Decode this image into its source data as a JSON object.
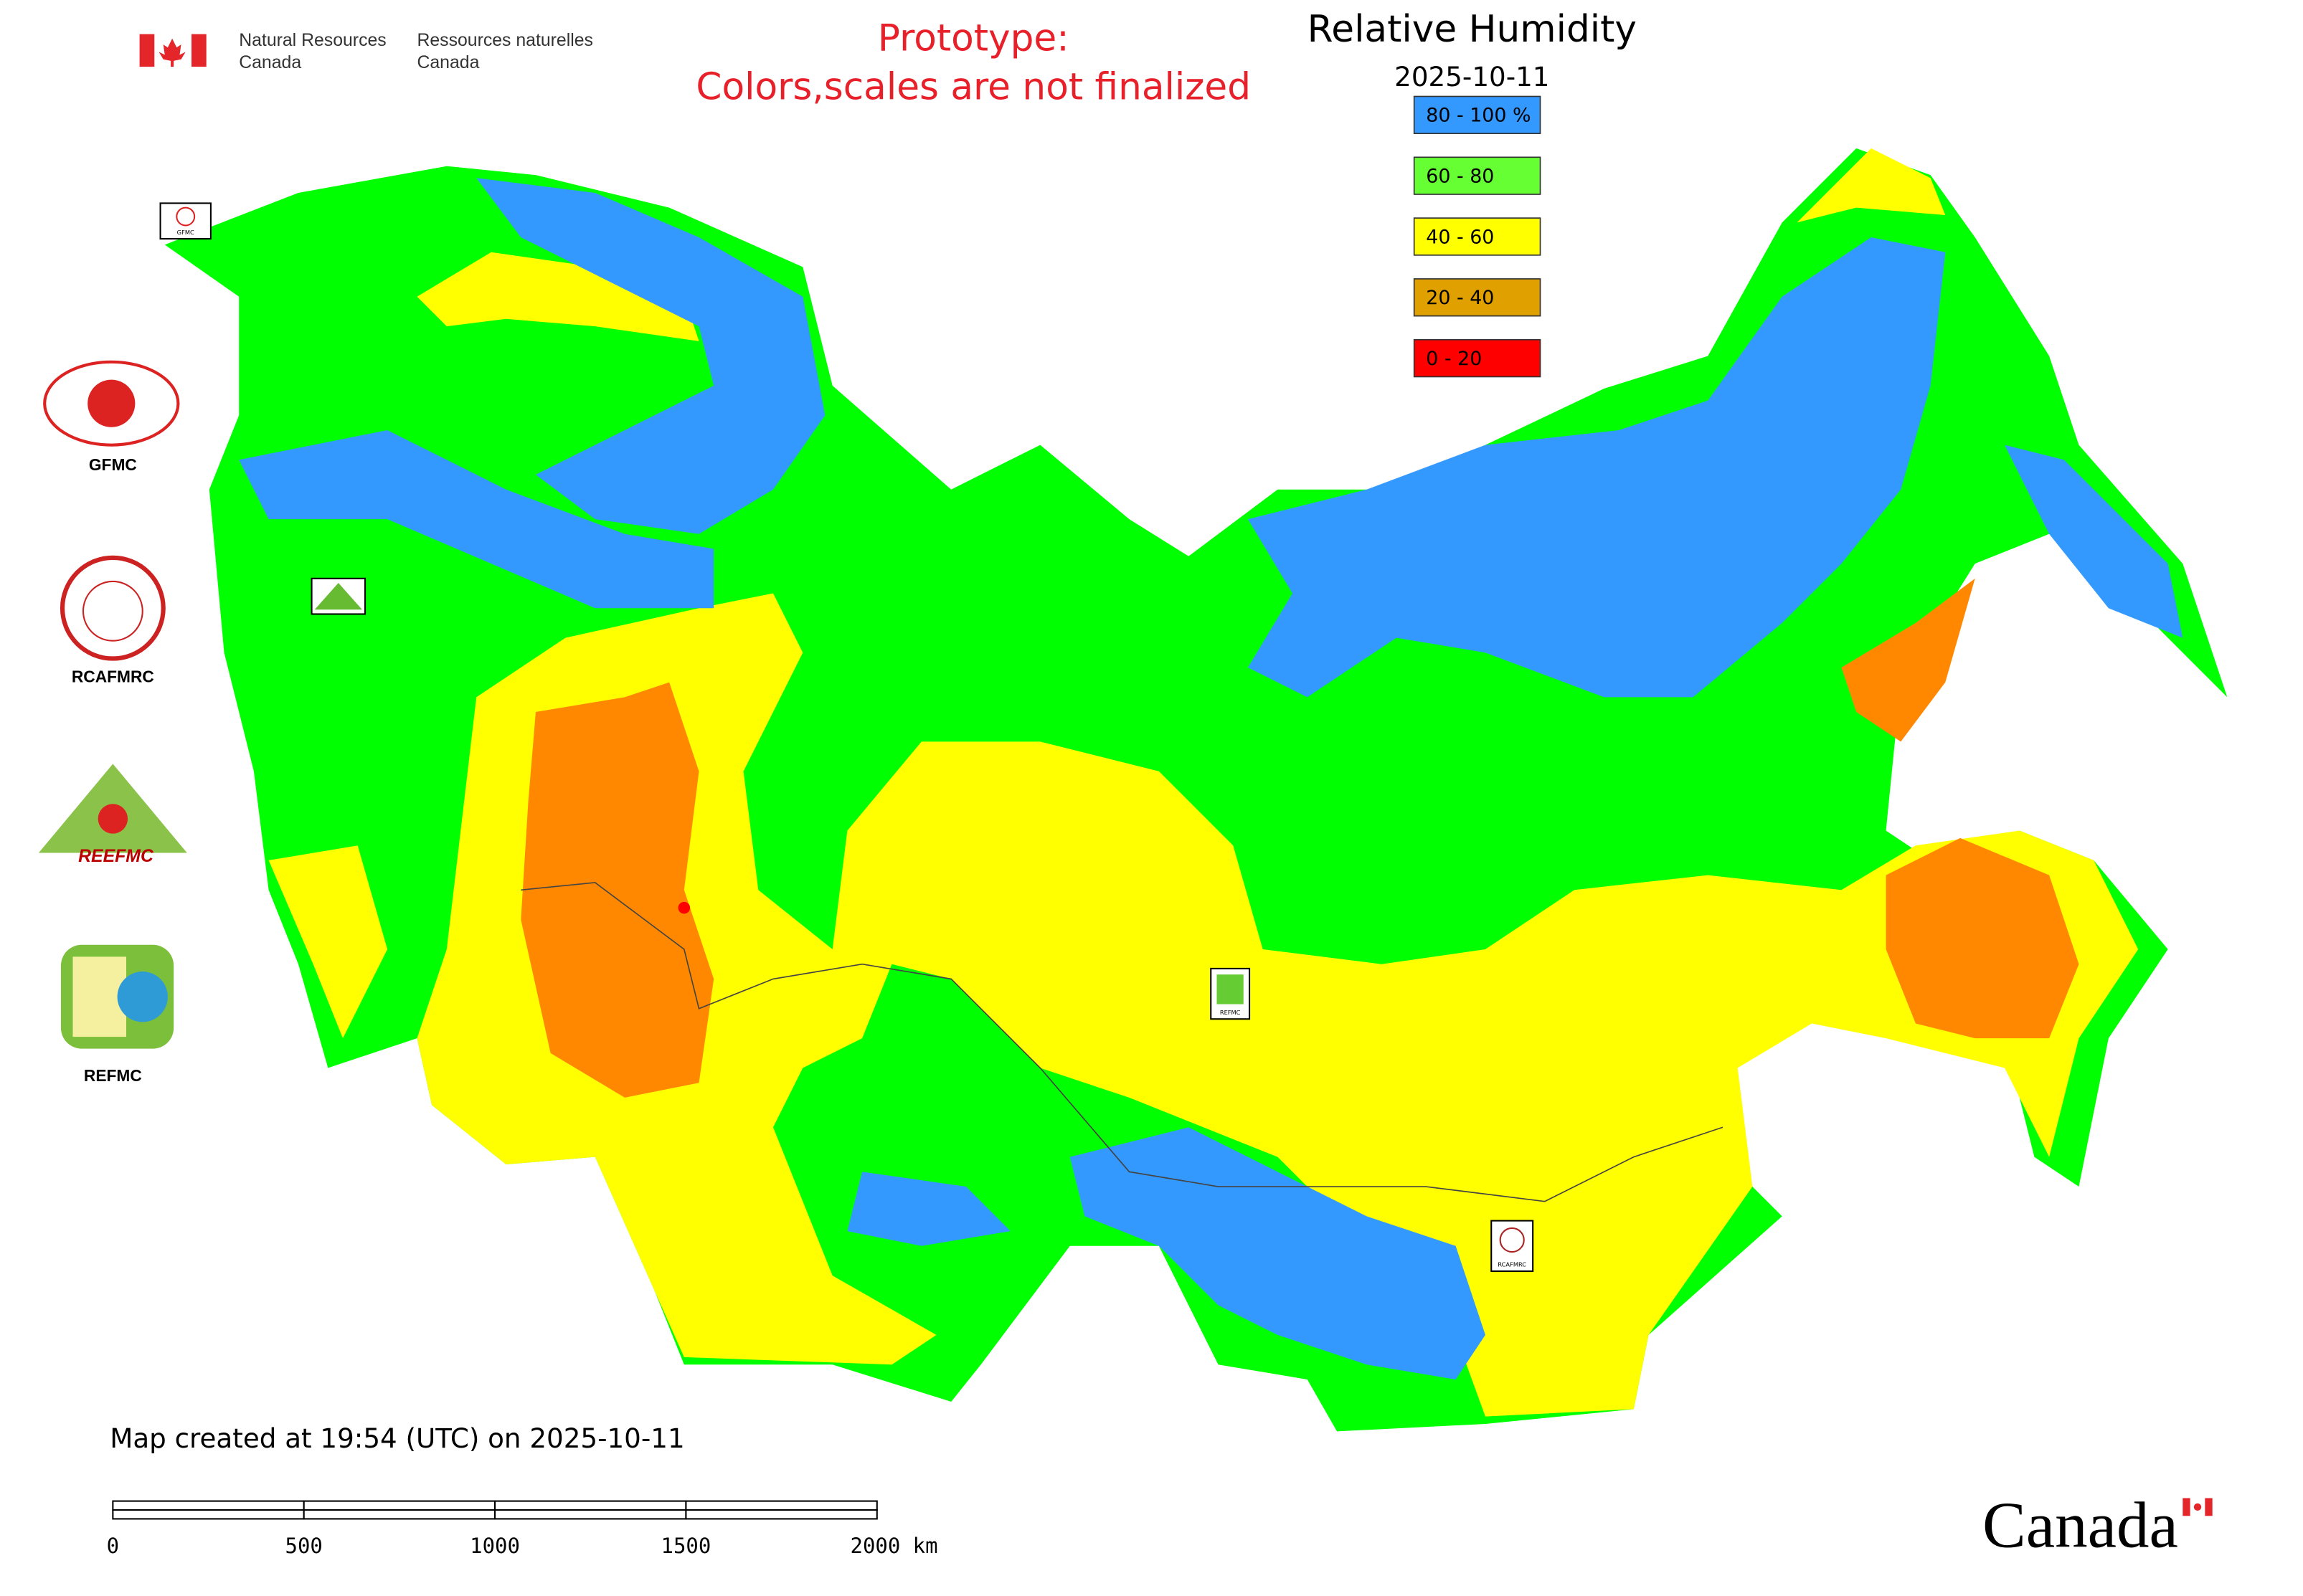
{
  "header": {
    "department_en": [
      "Natural Resources",
      "Canada"
    ],
    "department_fr": [
      "Ressources naturelles",
      "Canada"
    ],
    "notice": [
      "Prototype:",
      "Colors,scales are not finalized"
    ]
  },
  "legend": {
    "title": "Relative Humidity",
    "date": "2025-10-11",
    "items": [
      {
        "label": "80 - 100 %",
        "color": "#3399ff"
      },
      {
        "label": "60 - 80",
        "color": "#66ff33"
      },
      {
        "label": "40 - 60",
        "color": "#ffff00"
      },
      {
        "label": "20 - 40",
        "color": "#e0a000"
      },
      {
        "label": "0 - 20",
        "color": "#ff0000"
      }
    ]
  },
  "partners": [
    "GFMC",
    "RCAFMRC",
    "REEFMC",
    "REFMC"
  ],
  "map_markers": [
    "GFMC",
    "REFMC",
    "RCAFMRC"
  ],
  "footer": {
    "created": "Map created at 19:54 (UTC) on 2025-10-11",
    "scale_labels": [
      "0",
      "500",
      "1000",
      "1500",
      "2000 km"
    ],
    "wordmark": "Canada"
  }
}
